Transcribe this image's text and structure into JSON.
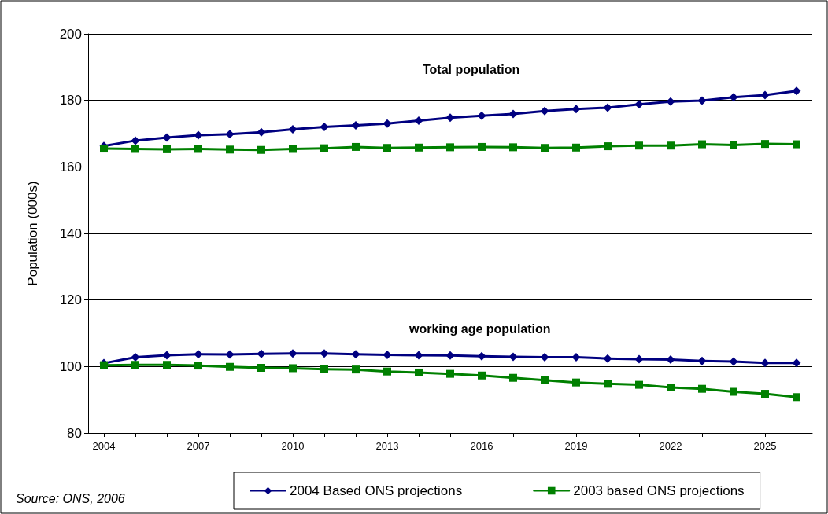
{
  "chart_data": {
    "type": "line",
    "ylabel": "Population (000s)",
    "categories": [
      "2004",
      null,
      null,
      "2007",
      null,
      null,
      "2010",
      null,
      null,
      "2013",
      null,
      null,
      "2016",
      null,
      null,
      "2019",
      null,
      null,
      "2022",
      null,
      null,
      "2025",
      null
    ],
    "series": [
      {
        "name": "2004 Based ONS projections",
        "color": "#000080",
        "marker": "diamond",
        "values": [
          166.3,
          167.9,
          168.8,
          169.5,
          169.8,
          170.4,
          171.3,
          172.0,
          172.5,
          173.0,
          173.9,
          174.8,
          175.4,
          175.9,
          176.8,
          177.4,
          177.8,
          178.8,
          179.6,
          179.9,
          180.9,
          181.6,
          182.8
        ]
      },
      {
        "name": "2003 based ONS projections",
        "color": "#008000",
        "marker": "square",
        "values": [
          165.5,
          165.4,
          165.3,
          165.4,
          165.2,
          165.1,
          165.4,
          165.6,
          166.0,
          165.7,
          165.8,
          165.9,
          166.0,
          165.9,
          165.7,
          165.8,
          166.2,
          166.4,
          166.4,
          166.8,
          166.6,
          166.9,
          166.8
        ]
      },
      {
        "color": "#000080",
        "marker": "diamond",
        "values": [
          101.0,
          102.8,
          103.4,
          103.7,
          103.6,
          103.8,
          103.9,
          103.9,
          103.7,
          103.5,
          103.4,
          103.3,
          103.1,
          102.9,
          102.8,
          102.8,
          102.4,
          102.2,
          102.1,
          101.7,
          101.5,
          101.1,
          101.1
        ]
      },
      {
        "color": "#008000",
        "marker": "square",
        "values": [
          100.4,
          100.5,
          100.5,
          100.3,
          99.9,
          99.6,
          99.5,
          99.2,
          99.1,
          98.5,
          98.2,
          97.8,
          97.3,
          96.6,
          95.9,
          95.2,
          94.8,
          94.5,
          93.7,
          93.3,
          92.4,
          91.8,
          90.8
        ]
      }
    ],
    "ylim": [
      80,
      200
    ],
    "yticks": [
      80,
      100,
      120,
      140,
      160,
      180,
      200
    ],
    "grid": "y",
    "legend": "bottom",
    "annotations": [
      "Total population",
      "working age population",
      "Source: ONS, 2006"
    ]
  }
}
